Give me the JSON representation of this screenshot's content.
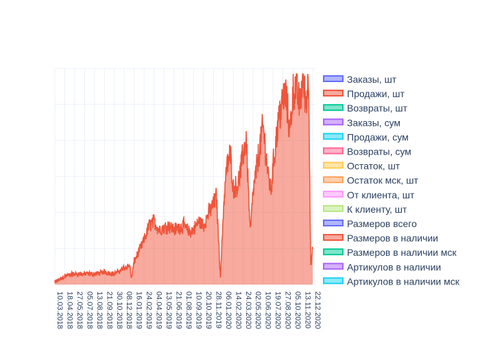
{
  "chart_data": {
    "type": "area",
    "title": "",
    "xlabel": "",
    "ylabel": "",
    "grid": true,
    "legend_placement": "right",
    "x_tick_labels": [
      "10.03.2018",
      "18.04.2018",
      "27.05.2018",
      "05.07.2018",
      "13.08.2018",
      "21.09.2018",
      "30.10.2018",
      "08.12.2018",
      "16.01.2019",
      "24.02.2019",
      "04.04.2019",
      "13.05.2019",
      "21.06.2019",
      "01.08.2019",
      "10.09.2019",
      "20.10.2019",
      "28.11.2019",
      "06.01.2020",
      "14.02.2020",
      "24.03.2020",
      "02.05.2020",
      "10.06.2020",
      "19.07.2020",
      "27.08.2020",
      "05.10.2020",
      "13.11.2020",
      "22.12.2020"
    ],
    "visible_series": "Продажи, шт",
    "series": [
      {
        "name": "Заказы, шт",
        "color": "#636efa"
      },
      {
        "name": "Продажи, шт",
        "color": "#EF553B"
      },
      {
        "name": "Возвраты, шт",
        "color": "#00cc96"
      },
      {
        "name": "Заказы, сум",
        "color": "#ab63fa"
      },
      {
        "name": "Продажи, сум",
        "color": "#19d3f3"
      },
      {
        "name": "Возвраты, сум",
        "color": "#ff6692"
      },
      {
        "name": "Остаток, шт",
        "color": "#fecb52"
      },
      {
        "name": "Остаток мск, шт",
        "color": "#ffa15a"
      },
      {
        "name": "От клиента, шт",
        "color": "#ff97ff"
      },
      {
        "name": "К клиенту, шт",
        "color": "#b6e880"
      },
      {
        "name": "Размеров всего",
        "color": "#636efa"
      },
      {
        "name": "Размеров в наличии",
        "color": "#EF553B"
      },
      {
        "name": "Размеров в наличии мск",
        "color": "#00cc96"
      },
      {
        "name": "Артикулов в наличии",
        "color": "#ab63fa"
      },
      {
        "name": "Артикулов в наличии мск",
        "color": "#19d3f3"
      }
    ],
    "sales_profile": {
      "x_index": [
        0,
        1,
        2,
        3,
        4,
        5,
        6,
        7,
        7.6,
        7.7,
        8,
        8.5,
        9,
        9.5,
        10,
        10.5,
        11,
        11.5,
        12,
        12.5,
        13,
        13.5,
        14,
        14.5,
        15,
        15.5,
        16,
        16.3,
        16.7,
        17,
        17.3,
        17.7,
        18,
        18.5,
        19,
        19.3,
        19.7,
        20,
        20.5,
        21,
        21.5,
        21.8,
        22,
        22.5,
        23,
        23.3,
        23.7,
        24,
        24.3,
        24.7,
        25,
        25.3,
        25.6,
        25.8,
        26.0
      ],
      "relative_value": [
        0.01,
        0.04,
        0.05,
        0.05,
        0.05,
        0.06,
        0.05,
        0.08,
        0.09,
        0.02,
        0.11,
        0.16,
        0.21,
        0.28,
        0.3,
        0.26,
        0.27,
        0.28,
        0.26,
        0.27,
        0.28,
        0.25,
        0.26,
        0.3,
        0.28,
        0.34,
        0.38,
        0.42,
        0.03,
        0.36,
        0.55,
        0.62,
        0.45,
        0.48,
        0.62,
        0.7,
        0.25,
        0.44,
        0.6,
        0.75,
        0.52,
        0.44,
        0.56,
        0.76,
        0.88,
        0.9,
        0.72,
        0.91,
        0.94,
        0.85,
        0.99,
        0.86,
        1.0,
        0.08,
        0.17
      ]
    }
  }
}
